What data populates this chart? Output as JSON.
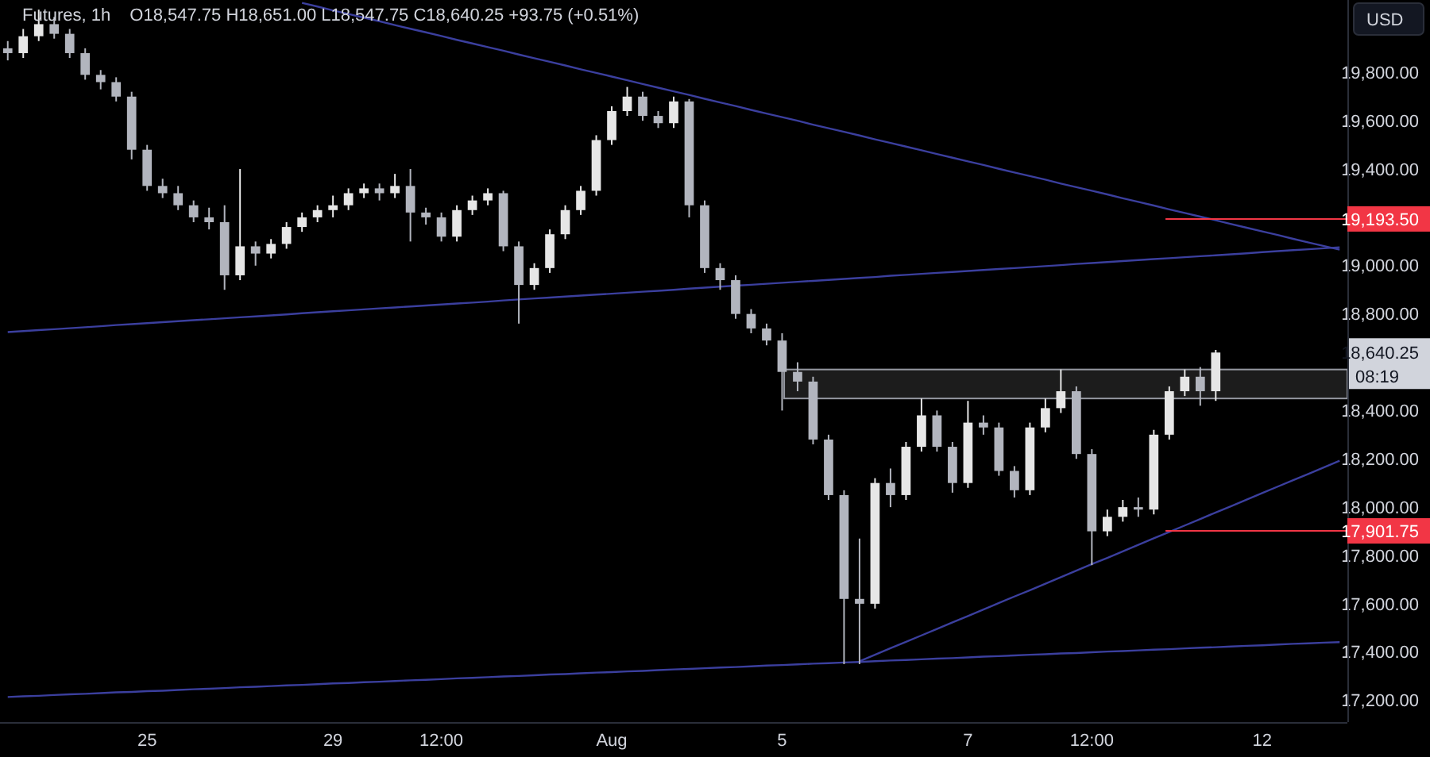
{
  "chart_data": {
    "type": "candlestick",
    "title": "Futures, 1h",
    "annotations": [
      "O18,547.75 H18,651.00 L18,547.75 C18,640.25 +93.75 (+0.51%)",
      "18,640.25",
      "08:19",
      "USD"
    ],
    "categories": [
      null,
      null,
      null,
      null,
      null,
      null,
      null,
      null,
      null,
      "25",
      null,
      null,
      null,
      null,
      null,
      null,
      null,
      null,
      null,
      null,
      null,
      "29",
      null,
      null,
      null,
      null,
      null,
      null,
      "12:00",
      null,
      null,
      null,
      null,
      null,
      null,
      null,
      null,
      null,
      null,
      "Aug",
      null,
      null,
      null,
      null,
      null,
      null,
      null,
      null,
      null,
      null,
      "5",
      null,
      null,
      null,
      null,
      null,
      null,
      null,
      null,
      null,
      null,
      null,
      "7",
      null,
      null,
      null,
      null,
      null,
      null,
      null,
      "12:00",
      null,
      null,
      null,
      null,
      null,
      null,
      null,
      null,
      null,
      null,
      "12",
      null,
      null,
      null,
      null,
      null
    ],
    "ohlc": [
      [
        19900,
        19930,
        19850,
        19880
      ],
      [
        19880,
        19980,
        19860,
        19950
      ],
      [
        19950,
        20060,
        19930,
        20000
      ],
      [
        20000,
        20030,
        19940,
        19960
      ],
      [
        19960,
        19980,
        19860,
        19880
      ],
      [
        19880,
        19900,
        19770,
        19790
      ],
      [
        19790,
        19810,
        19730,
        19760
      ],
      [
        19760,
        19780,
        19680,
        19700
      ],
      [
        19700,
        19720,
        19440,
        19480
      ],
      [
        19480,
        19500,
        19310,
        19330
      ],
      [
        19330,
        19360,
        19280,
        19300
      ],
      [
        19300,
        19330,
        19230,
        19250
      ],
      [
        19250,
        19270,
        19180,
        19200
      ],
      [
        19200,
        19240,
        19150,
        19180
      ],
      [
        19180,
        19250,
        18900,
        18960
      ],
      [
        18960,
        19400,
        18940,
        19080
      ],
      [
        19080,
        19100,
        19000,
        19050
      ],
      [
        19050,
        19110,
        19030,
        19090
      ],
      [
        19090,
        19180,
        19070,
        19160
      ],
      [
        19160,
        19220,
        19140,
        19200
      ],
      [
        19200,
        19250,
        19180,
        19230
      ],
      [
        19230,
        19290,
        19200,
        19250
      ],
      [
        19250,
        19320,
        19230,
        19300
      ],
      [
        19300,
        19340,
        19280,
        19320
      ],
      [
        19320,
        19340,
        19270,
        19300
      ],
      [
        19300,
        19380,
        19280,
        19330
      ],
      [
        19330,
        19400,
        19100,
        19220
      ],
      [
        19220,
        19240,
        19170,
        19200
      ],
      [
        19200,
        19220,
        19100,
        19120
      ],
      [
        19120,
        19250,
        19100,
        19230
      ],
      [
        19230,
        19290,
        19210,
        19270
      ],
      [
        19270,
        19320,
        19250,
        19300
      ],
      [
        19300,
        19310,
        19060,
        19080
      ],
      [
        19080,
        19100,
        18760,
        18920
      ],
      [
        18920,
        19010,
        18900,
        18990
      ],
      [
        18990,
        19150,
        18970,
        19130
      ],
      [
        19130,
        19250,
        19110,
        19230
      ],
      [
        19230,
        19330,
        19210,
        19310
      ],
      [
        19310,
        19540,
        19290,
        19520
      ],
      [
        19520,
        19660,
        19500,
        19640
      ],
      [
        19640,
        19740,
        19620,
        19700
      ],
      [
        19700,
        19720,
        19600,
        19620
      ],
      [
        19620,
        19640,
        19570,
        19590
      ],
      [
        19590,
        19700,
        19570,
        19680
      ],
      [
        19680,
        19690,
        19200,
        19250
      ],
      [
        19250,
        19270,
        18970,
        18990
      ],
      [
        18990,
        19010,
        18900,
        18940
      ],
      [
        18940,
        18960,
        18780,
        18800
      ],
      [
        18800,
        18820,
        18720,
        18740
      ],
      [
        18740,
        18760,
        18670,
        18690
      ],
      [
        18690,
        18720,
        18400,
        18560
      ],
      [
        18560,
        18600,
        18480,
        18520
      ],
      [
        18520,
        18540,
        18260,
        18280
      ],
      [
        18280,
        18300,
        18030,
        18050
      ],
      [
        18050,
        18070,
        17350,
        17620
      ],
      [
        17620,
        17870,
        17350,
        17600
      ],
      [
        17600,
        18120,
        17580,
        18100
      ],
      [
        18100,
        18160,
        18000,
        18050
      ],
      [
        18050,
        18270,
        18030,
        18250
      ],
      [
        18250,
        18450,
        18230,
        18380
      ],
      [
        18380,
        18400,
        18230,
        18250
      ],
      [
        18250,
        18270,
        18060,
        18100
      ],
      [
        18100,
        18440,
        18080,
        18350
      ],
      [
        18350,
        18380,
        18300,
        18330
      ],
      [
        18330,
        18350,
        18130,
        18150
      ],
      [
        18150,
        18170,
        18040,
        18070
      ],
      [
        18070,
        18350,
        18050,
        18330
      ],
      [
        18330,
        18450,
        18310,
        18410
      ],
      [
        18410,
        18570,
        18390,
        18480
      ],
      [
        18480,
        18500,
        18200,
        18220
      ],
      [
        18220,
        18240,
        17760,
        17900
      ],
      [
        17900,
        17990,
        17880,
        17960
      ],
      [
        17960,
        18030,
        17940,
        18000
      ],
      [
        18000,
        18040,
        17960,
        17990
      ],
      [
        17990,
        18320,
        17970,
        18300
      ],
      [
        18300,
        18500,
        18280,
        18480
      ],
      [
        18480,
        18570,
        18460,
        18540
      ],
      [
        18540,
        18580,
        18420,
        18480
      ],
      [
        18480,
        18651,
        18440,
        18640.25
      ],
      null,
      null,
      null,
      null,
      null,
      null,
      null,
      null
    ],
    "series": [
      {
        "type": "line",
        "color": "#3b3f9e",
        "values": [
          null,
          null,
          null,
          null,
          null,
          null,
          null,
          null,
          null,
          null,
          null,
          null,
          null,
          null,
          null,
          null,
          null,
          null,
          null,
          20088,
          20073,
          20057,
          20042,
          20027,
          20012,
          19996,
          19981,
          19966,
          19951,
          19935,
          19920,
          19905,
          19890,
          19874,
          19859,
          19844,
          19829,
          19813,
          19798,
          19783,
          19768,
          19752,
          19737,
          19722,
          19707,
          19691,
          19676,
          19661,
          19645,
          19630,
          19615,
          19600,
          19584,
          19569,
          19554,
          19539,
          19523,
          19508,
          19493,
          19478,
          19462,
          19447,
          19432,
          19417,
          19401,
          19386,
          19371,
          19356,
          19340,
          19325,
          19310,
          19295,
          19279,
          19264,
          19249,
          19233,
          19218,
          19203,
          19188,
          19172,
          19157,
          19142,
          19127,
          19111,
          19096,
          19081,
          19066
        ]
      },
      {
        "type": "line",
        "color": "#3b3f9e",
        "values": [
          18725,
          18729,
          18733,
          18737,
          18741,
          18745,
          18749,
          18754,
          18758,
          18762,
          18766,
          18770,
          18774,
          18778,
          18782,
          18786,
          18790,
          18794,
          18798,
          18803,
          18807,
          18811,
          18815,
          18819,
          18823,
          18827,
          18831,
          18835,
          18839,
          18843,
          18847,
          18851,
          18856,
          18860,
          18864,
          18868,
          18872,
          18876,
          18880,
          18884,
          18888,
          18892,
          18896,
          18900,
          18905,
          18909,
          18913,
          18917,
          18921,
          18925,
          18929,
          18933,
          18937,
          18941,
          18945,
          18949,
          18953,
          18958,
          18962,
          18966,
          18970,
          18974,
          18978,
          18982,
          18986,
          18990,
          18994,
          18998,
          19002,
          19007,
          19011,
          19015,
          19019,
          19023,
          19027,
          19031,
          19035,
          19039,
          19043,
          19047,
          19051,
          19056,
          19060,
          19064,
          19068,
          19072,
          19076
        ]
      },
      {
        "type": "line",
        "color": "#3b3f9e",
        "values": [
          17214,
          17217,
          17219,
          17222,
          17225,
          17227,
          17230,
          17233,
          17235,
          17238,
          17240,
          17243,
          17246,
          17248,
          17251,
          17254,
          17256,
          17259,
          17262,
          17264,
          17267,
          17270,
          17272,
          17275,
          17277,
          17280,
          17283,
          17285,
          17288,
          17291,
          17293,
          17296,
          17299,
          17301,
          17304,
          17307,
          17309,
          17312,
          17315,
          17317,
          17320,
          17322,
          17325,
          17328,
          17330,
          17333,
          17336,
          17338,
          17341,
          17344,
          17346,
          17349,
          17352,
          17354,
          17357,
          17359,
          17362,
          17365,
          17367,
          17370,
          17373,
          17375,
          17378,
          17381,
          17383,
          17386,
          17389,
          17391,
          17394,
          17396,
          17399,
          17402,
          17404,
          17407,
          17410,
          17412,
          17415,
          17418,
          17420,
          17423,
          17426,
          17428,
          17431,
          17434,
          17436,
          17439,
          17441
        ]
      },
      {
        "type": "line",
        "color": "#3b3f9e",
        "values": [
          null,
          null,
          null,
          null,
          null,
          null,
          null,
          null,
          null,
          null,
          null,
          null,
          null,
          null,
          null,
          null,
          null,
          null,
          null,
          null,
          null,
          null,
          null,
          null,
          null,
          null,
          null,
          null,
          null,
          null,
          null,
          null,
          null,
          null,
          null,
          null,
          null,
          null,
          null,
          null,
          null,
          null,
          null,
          null,
          null,
          null,
          null,
          null,
          null,
          null,
          null,
          null,
          null,
          null,
          null,
          17362,
          17389,
          17416,
          17442,
          17469,
          17496,
          17523,
          17549,
          17576,
          17603,
          17630,
          17656,
          17683,
          17710,
          17737,
          17764,
          17790,
          17817,
          17844,
          17871,
          17897,
          17924,
          17951,
          17978,
          18004,
          18031,
          18058,
          18085,
          18112,
          18138,
          18165,
          18192
        ]
      }
    ],
    "ref_lines": [
      {
        "axis": "y",
        "value": 19193.5,
        "label": "19,193.50",
        "color": "#f23645"
      },
      {
        "axis": "y",
        "value": 17901.75,
        "label": "17,901.75",
        "color": "#f23645"
      }
    ],
    "bands": [
      {
        "axis": "y",
        "from": 18450,
        "to": 18570,
        "color": "#1c1c1c"
      }
    ],
    "ylim": [
      17110,
      20100
    ],
    "yticks": [
      {
        "value": 17200,
        "label": "17,200.00"
      },
      {
        "value": 17400,
        "label": "17,400.00"
      },
      {
        "value": 17600,
        "label": "17,600.00"
      },
      {
        "value": 17800,
        "label": "17,800.00"
      },
      {
        "value": 18000,
        "label": "18,000.00"
      },
      {
        "value": 18200,
        "label": "18,200.00"
      },
      {
        "value": 18400,
        "label": "18,400.00"
      },
      {
        "value": 18800,
        "label": "18,800.00"
      },
      {
        "value": 19000,
        "label": "19,000.00"
      },
      {
        "value": 19400,
        "label": "19,400.00"
      },
      {
        "value": 19600,
        "label": "19,600.00"
      },
      {
        "value": 19800,
        "label": "19,800.00"
      }
    ]
  }
}
